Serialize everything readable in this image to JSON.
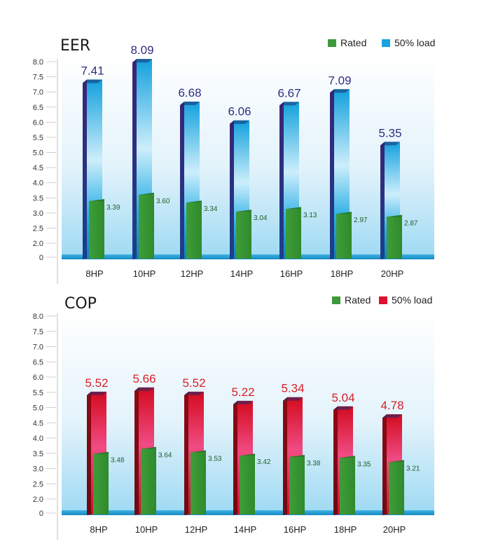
{
  "colors": {
    "rated_green": "#3d9a3a",
    "eer_blue": "#1aa3de",
    "cop_red": "#e01030",
    "eer_label": "#2d2f7f",
    "cop_label": "#d81e28"
  },
  "chart_data": [
    {
      "type": "bar",
      "title": "EER",
      "categories": [
        "8HP",
        "10HP",
        "12HP",
        "14HP",
        "16HP",
        "18HP",
        "20HP"
      ],
      "y_ticks": [
        "0",
        "2.0",
        "2.5",
        "3.0",
        "3.5",
        "4.0",
        "4.5",
        "5.0",
        "5.5",
        "6.0",
        "6.5",
        "7.0",
        "7.5",
        "8.0"
      ],
      "legend_placement": "top-right",
      "series": [
        {
          "name": "Rated",
          "values": [
            3.39,
            3.6,
            3.34,
            3.04,
            3.13,
            2.97,
            2.87
          ],
          "labels": [
            "3.39",
            "3.60",
            "3.34",
            "3.04",
            "3.13",
            "2.97",
            "2.87"
          ]
        },
        {
          "name": "50% load",
          "values": [
            7.41,
            8.09,
            6.68,
            6.06,
            6.67,
            7.09,
            5.35
          ],
          "labels": [
            "7.41",
            "8.09",
            "6.68",
            "6.06",
            "6.67",
            "7.09",
            "5.35"
          ]
        }
      ]
    },
    {
      "type": "bar",
      "title": "COP",
      "categories": [
        "8HP",
        "10HP",
        "12HP",
        "14HP",
        "16HP",
        "18HP",
        "20HP"
      ],
      "y_ticks": [
        "0",
        "2.0",
        "2.5",
        "3.0",
        "3.5",
        "4.0",
        "4.5",
        "5.0",
        "5.5",
        "6.0",
        "6.5",
        "7.0",
        "7.5",
        "8.0"
      ],
      "legend_placement": "top-right",
      "series": [
        {
          "name": "Rated",
          "values": [
            3.48,
            3.64,
            3.53,
            3.42,
            3.38,
            3.35,
            3.21
          ],
          "labels": [
            "3.48",
            "3.64",
            "3.53",
            "3.42",
            "3.38",
            "3.35",
            "3.21"
          ]
        },
        {
          "name": "50% load",
          "values": [
            5.52,
            5.66,
            5.52,
            5.22,
            5.34,
            5.04,
            4.78
          ],
          "labels": [
            "5.52",
            "5.66",
            "5.52",
            "5.22",
            "5.34",
            "5.04",
            "4.78"
          ]
        }
      ]
    }
  ]
}
